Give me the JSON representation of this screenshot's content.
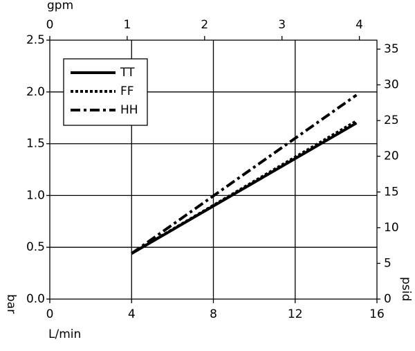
{
  "chart_data": {
    "type": "line",
    "xlabel": "L/min",
    "ylabel": "bar",
    "x2label": "gpm",
    "y2label": "psid",
    "x": [
      4,
      15
    ],
    "series": [
      {
        "name": "TT",
        "color": "#000000",
        "dash": "solid",
        "values": [
          0.44,
          1.7
        ]
      },
      {
        "name": "FF",
        "color": "#000000",
        "dash": "dot",
        "values": [
          0.44,
          1.72
        ]
      },
      {
        "name": "HH",
        "color": "#000000",
        "dash": "dashdot",
        "values": [
          0.44,
          1.97
        ]
      }
    ],
    "xlim": [
      0,
      16
    ],
    "xticks": [
      0,
      4,
      8,
      12,
      16
    ],
    "ylim": [
      0,
      2.5
    ],
    "yticks": [
      {
        "value": 0,
        "label": "0.0"
      },
      0.5,
      {
        "value": 1,
        "label": "1.0"
      },
      1.5,
      {
        "value": 2,
        "label": "2.0"
      },
      2.5
    ],
    "x2lim": [
      0,
      4.227
    ],
    "x2ticks": [
      0,
      1,
      2,
      3,
      4
    ],
    "y2lim": [
      0,
      36.26
    ],
    "y2ticks": [
      0,
      5,
      10,
      15,
      20,
      25,
      30,
      35
    ],
    "grid": true,
    "legend": "upper left"
  }
}
